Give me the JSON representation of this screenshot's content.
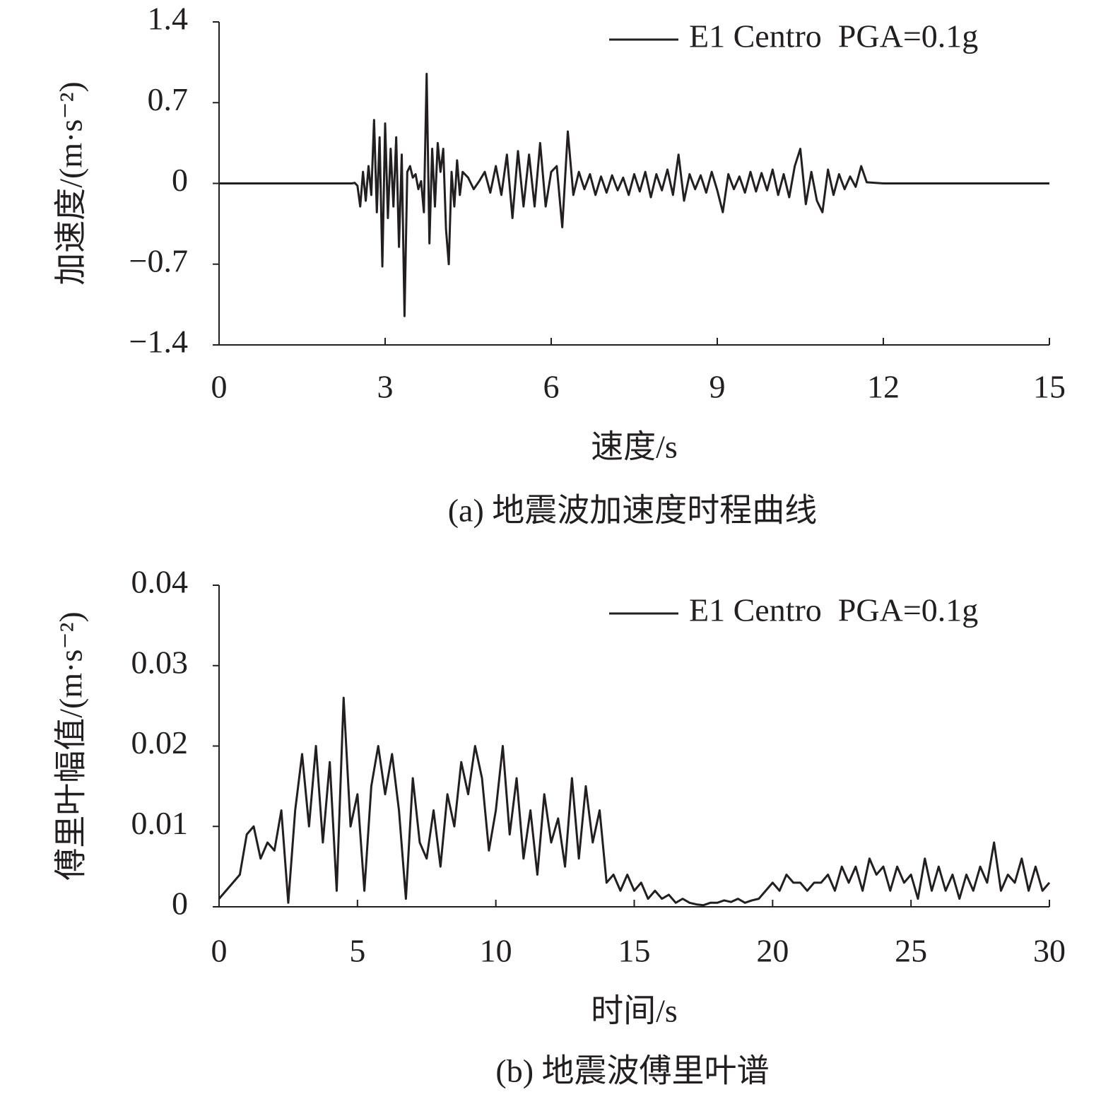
{
  "chart_data": [
    {
      "type": "line",
      "caption": "(a) 地震波加速度时程曲线",
      "xlabel": "速度/s",
      "ylabel": "加速度/(m·s⁻²)",
      "xlim": [
        0,
        15
      ],
      "xticks": [
        0,
        3,
        6,
        9,
        12,
        15
      ],
      "ylim": [
        -1.4,
        1.4
      ],
      "yticks": [
        {
          "value": -1.4,
          "label": "−1.4"
        },
        {
          "value": -0.7,
          "label": "−0.7"
        },
        0,
        0.7,
        1.4
      ],
      "legend": "upper right",
      "x": [
        0,
        2.4,
        2.45,
        2.5,
        2.55,
        2.6,
        2.65,
        2.7,
        2.75,
        2.8,
        2.85,
        2.9,
        2.95,
        3.0,
        3.05,
        3.1,
        3.15,
        3.2,
        3.25,
        3.3,
        3.35,
        3.4,
        3.45,
        3.5,
        3.55,
        3.6,
        3.65,
        3.7,
        3.75,
        3.8,
        3.85,
        3.9,
        3.95,
        4.0,
        4.05,
        4.1,
        4.15,
        4.2,
        4.25,
        4.3,
        4.35,
        4.4,
        4.5,
        4.6,
        4.7,
        4.8,
        4.9,
        5.0,
        5.1,
        5.2,
        5.3,
        5.4,
        5.5,
        5.6,
        5.7,
        5.8,
        5.9,
        6.0,
        6.1,
        6.2,
        6.3,
        6.4,
        6.5,
        6.6,
        6.7,
        6.8,
        6.9,
        7.0,
        7.1,
        7.2,
        7.3,
        7.4,
        7.5,
        7.6,
        7.7,
        7.8,
        7.9,
        8.0,
        8.1,
        8.2,
        8.3,
        8.4,
        8.5,
        8.6,
        8.7,
        8.8,
        8.9,
        9.0,
        9.1,
        9.2,
        9.3,
        9.4,
        9.5,
        9.6,
        9.7,
        9.8,
        9.9,
        10.0,
        10.1,
        10.2,
        10.3,
        10.4,
        10.5,
        10.6,
        10.7,
        10.8,
        10.9,
        11.0,
        11.1,
        11.2,
        11.3,
        11.4,
        11.5,
        11.6,
        11.7,
        12,
        15
      ],
      "series": [
        {
          "name": "E1 Centro  PGA=0.1g",
          "color": "#231f20",
          "values": [
            0,
            0,
            0.005,
            -0.02,
            -0.2,
            0.1,
            -0.15,
            0.15,
            -0.1,
            0.55,
            -0.25,
            0.4,
            -0.72,
            0.52,
            -0.3,
            0.3,
            -0.2,
            0.4,
            -0.55,
            0.25,
            -1.15,
            0.1,
            0.15,
            0.05,
            0.08,
            -0.05,
            0.02,
            -0.25,
            0.95,
            -0.52,
            0.3,
            -0.2,
            0.35,
            0.1,
            0.3,
            -0.4,
            -0.7,
            0.1,
            -0.2,
            0.2,
            -0.1,
            0.1,
            0.05,
            -0.05,
            0.02,
            0.1,
            -0.08,
            0.15,
            -0.1,
            0.25,
            -0.3,
            0.28,
            -0.2,
            0.25,
            -0.2,
            0.35,
            -0.2,
            0.1,
            0.15,
            -0.38,
            0.45,
            -0.1,
            0.1,
            -0.05,
            0.08,
            -0.1,
            0.06,
            -0.08,
            0.07,
            -0.06,
            0.05,
            -0.1,
            0.08,
            -0.07,
            0.1,
            -0.12,
            0.08,
            -0.06,
            0.12,
            -0.1,
            0.25,
            -0.15,
            0.08,
            -0.05,
            0.07,
            -0.08,
            0.1,
            -0.06,
            -0.25,
            0.08,
            -0.05,
            0.06,
            -0.08,
            0.1,
            -0.07,
            0.09,
            -0.06,
            0.12,
            -0.1,
            0.08,
            -0.12,
            0.15,
            0.3,
            -0.18,
            0.1,
            -0.15,
            -0.25,
            0.12,
            -0.1,
            0.08,
            -0.05,
            0.06,
            -0.03,
            0.15,
            0.01,
            0,
            0
          ]
        }
      ]
    },
    {
      "type": "line",
      "caption": "(b) 地震波傅里叶谱",
      "xlabel": "时间/s",
      "ylabel": "傅里叶幅值/(m·s⁻²)",
      "xlim": [
        0,
        30
      ],
      "xticks": [
        0,
        5,
        10,
        15,
        20,
        25,
        30
      ],
      "ylim": [
        0,
        0.04
      ],
      "yticks": [
        0,
        0.01,
        0.02,
        0.03,
        0.04
      ],
      "legend": "upper right",
      "x": [
        0,
        0.25,
        0.5,
        0.75,
        1,
        1.25,
        1.5,
        1.75,
        2,
        2.25,
        2.5,
        2.75,
        3,
        3.25,
        3.5,
        3.75,
        4,
        4.25,
        4.5,
        4.75,
        5,
        5.25,
        5.5,
        5.75,
        6,
        6.25,
        6.5,
        6.75,
        7,
        7.25,
        7.5,
        7.75,
        8,
        8.25,
        8.5,
        8.75,
        9,
        9.25,
        9.5,
        9.75,
        10,
        10.25,
        10.5,
        10.75,
        11,
        11.25,
        11.5,
        11.75,
        12,
        12.25,
        12.5,
        12.75,
        13,
        13.25,
        13.5,
        13.75,
        14,
        14.25,
        14.5,
        14.75,
        15,
        15.25,
        15.5,
        15.75,
        16,
        16.25,
        16.5,
        16.75,
        17,
        17.25,
        17.5,
        17.75,
        18,
        18.25,
        18.5,
        18.75,
        19,
        19.25,
        19.5,
        19.75,
        20,
        20.25,
        20.5,
        20.75,
        21,
        21.25,
        21.5,
        21.75,
        22,
        22.25,
        22.5,
        22.75,
        23,
        23.25,
        23.5,
        23.75,
        24,
        24.25,
        24.5,
        24.75,
        25,
        25.25,
        25.5,
        25.75,
        26,
        26.25,
        26.5,
        26.75,
        27,
        27.25,
        27.5,
        27.75,
        28,
        28.25,
        28.5,
        28.75,
        29,
        29.25,
        29.5,
        29.75,
        30
      ],
      "series": [
        {
          "name": "E1 Centro  PGA=0.1g",
          "color": "#231f20",
          "values": [
            0.001,
            0.002,
            0.003,
            0.004,
            0.009,
            0.01,
            0.006,
            0.008,
            0.007,
            0.012,
            0.0005,
            0.012,
            0.019,
            0.01,
            0.02,
            0.008,
            0.018,
            0.002,
            0.026,
            0.01,
            0.014,
            0.002,
            0.015,
            0.02,
            0.014,
            0.019,
            0.012,
            0.001,
            0.016,
            0.008,
            0.006,
            0.012,
            0.005,
            0.014,
            0.01,
            0.018,
            0.014,
            0.02,
            0.016,
            0.007,
            0.012,
            0.02,
            0.009,
            0.016,
            0.006,
            0.012,
            0.004,
            0.014,
            0.008,
            0.011,
            0.005,
            0.016,
            0.006,
            0.015,
            0.008,
            0.012,
            0.003,
            0.004,
            0.002,
            0.004,
            0.002,
            0.003,
            0.001,
            0.002,
            0.001,
            0.0015,
            0.0005,
            0.001,
            0.0005,
            0.0003,
            0.0002,
            0.0005,
            0.0005,
            0.0008,
            0.0006,
            0.001,
            0.0005,
            0.0008,
            0.001,
            0.002,
            0.003,
            0.002,
            0.004,
            0.003,
            0.003,
            0.002,
            0.003,
            0.003,
            0.004,
            0.002,
            0.005,
            0.003,
            0.005,
            0.002,
            0.006,
            0.004,
            0.005,
            0.002,
            0.005,
            0.003,
            0.004,
            0.001,
            0.006,
            0.002,
            0.005,
            0.002,
            0.004,
            0.001,
            0.004,
            0.002,
            0.005,
            0.003,
            0.008,
            0.002,
            0.004,
            0.003,
            0.006,
            0.002,
            0.005,
            0.002,
            0.003
          ]
        }
      ]
    }
  ]
}
